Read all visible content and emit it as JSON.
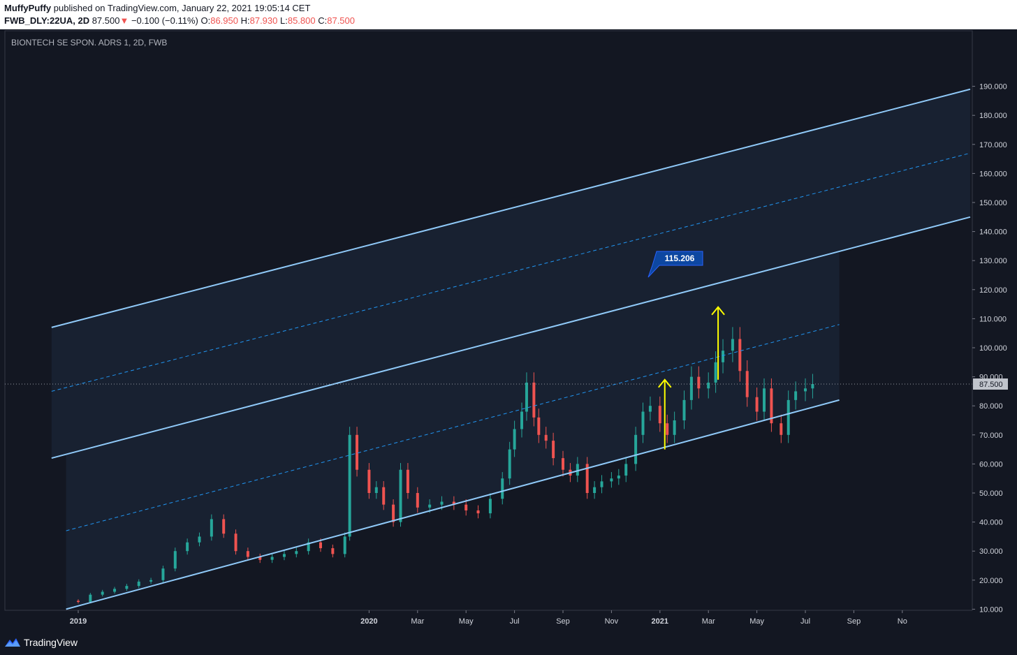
{
  "header": {
    "author": "MuffyPuffy",
    "published_text": "published on TradingView.com, January 22, 2021 19:05:14 CET",
    "symbol": "FWB_DLY:22UA, 2D",
    "last": "87.500",
    "change_arrow": "▼",
    "change": "−0.100 (−0.11%)",
    "o_label": "O:",
    "o_value": "86.950",
    "h_label": "H:",
    "h_value": "87.930",
    "l_label": "L:",
    "l_value": "85.800",
    "c_label": "C:",
    "c_value": "87.500"
  },
  "footer": {
    "brand": "TradingView",
    "logo_icon": "tradingview-logo-icon"
  },
  "colors": {
    "background": "#131722",
    "up": "#26a69a",
    "down": "#ef5350",
    "channel": "#90caf9",
    "median": "#2196f3",
    "arrow": "#ffff00",
    "label_bg": "#0d47a1",
    "channel_fill": "#1a2233",
    "grid": "#2a2e39"
  },
  "chart_data": {
    "type": "candlestick",
    "title": "BIONTECH SE SPON. ADRS 1, 2D, FWB",
    "price_axis": {
      "range": [
        0,
        195
      ],
      "ticks": [
        "10.000",
        "20.000",
        "30.000",
        "40.000",
        "50.000",
        "60.000",
        "70.000",
        "80.000",
        "90.000",
        "100.000",
        "110.000",
        "120.000",
        "130.000",
        "140.000",
        "150.000",
        "160.000",
        "170.000",
        "180.000",
        "190.000"
      ],
      "last_price_label": "87.500"
    },
    "time_axis": {
      "ticks": [
        {
          "label": "2019",
          "x_month": 0
        },
        {
          "label": "2020",
          "x_month": 12
        },
        {
          "label": "Mar",
          "x_month": 14
        },
        {
          "label": "May",
          "x_month": 16
        },
        {
          "label": "Jul",
          "x_month": 18
        },
        {
          "label": "Sep",
          "x_month": 20
        },
        {
          "label": "Nov",
          "x_month": 22
        },
        {
          "label": "2021",
          "x_month": 24
        },
        {
          "label": "Mar",
          "x_month": 26
        },
        {
          "label": "May",
          "x_month": 28
        },
        {
          "label": "Jul",
          "x_month": 30
        },
        {
          "label": "Sep",
          "x_month": 32
        },
        {
          "label": "No",
          "x_month": 34
        }
      ]
    },
    "series_ohlc_close_approx": [
      [
        0,
        12.5
      ],
      [
        0.5,
        15
      ],
      [
        1,
        16
      ],
      [
        1.5,
        17
      ],
      [
        2,
        18
      ],
      [
        2.5,
        19.5
      ],
      [
        3,
        20
      ],
      [
        3.5,
        24
      ],
      [
        4,
        30
      ],
      [
        4.5,
        33
      ],
      [
        5,
        35
      ],
      [
        5.5,
        41
      ],
      [
        6,
        36
      ],
      [
        6.5,
        30
      ],
      [
        7,
        28
      ],
      [
        7.5,
        27
      ],
      [
        8,
        28
      ],
      [
        8.5,
        29
      ],
      [
        9,
        30
      ],
      [
        9.5,
        33
      ],
      [
        10,
        31
      ],
      [
        10.5,
        29
      ],
      [
        11,
        35
      ],
      [
        11.2,
        70
      ],
      [
        11.5,
        58
      ],
      [
        12,
        50
      ],
      [
        12.3,
        52
      ],
      [
        12.6,
        46
      ],
      [
        13,
        40
      ],
      [
        13.3,
        58
      ],
      [
        13.6,
        50
      ],
      [
        14,
        45
      ],
      [
        14.5,
        46
      ],
      [
        15,
        47
      ],
      [
        15.5,
        46
      ],
      [
        16,
        44
      ],
      [
        16.5,
        43
      ],
      [
        17,
        48
      ],
      [
        17.5,
        55
      ],
      [
        17.8,
        65
      ],
      [
        18,
        72
      ],
      [
        18.3,
        78
      ],
      [
        18.5,
        88
      ],
      [
        18.8,
        76
      ],
      [
        19,
        70
      ],
      [
        19.3,
        68
      ],
      [
        19.6,
        62
      ],
      [
        20,
        58
      ],
      [
        20.3,
        56
      ],
      [
        20.6,
        60
      ],
      [
        21,
        50
      ],
      [
        21.3,
        52
      ],
      [
        21.6,
        54
      ],
      [
        22,
        55
      ],
      [
        22.3,
        56
      ],
      [
        22.6,
        60
      ],
      [
        23,
        70
      ],
      [
        23.3,
        78
      ],
      [
        23.6,
        80
      ],
      [
        24,
        74
      ],
      [
        24.3,
        70
      ],
      [
        24.6,
        75
      ],
      [
        25,
        82
      ],
      [
        25.3,
        90
      ],
      [
        25.6,
        86
      ],
      [
        26,
        88
      ],
      [
        26.3,
        95
      ],
      [
        26.6,
        99
      ],
      [
        27,
        103
      ],
      [
        27.3,
        92
      ],
      [
        27.6,
        83
      ],
      [
        28,
        78
      ],
      [
        28.3,
        86
      ],
      [
        28.6,
        74
      ],
      [
        29,
        70
      ],
      [
        29.3,
        82
      ],
      [
        29.6,
        85
      ],
      [
        30,
        86
      ],
      [
        30.3,
        87.5
      ]
    ],
    "channels": [
      {
        "name": "upper-channel-top",
        "start": [
          -1.1,
          107
        ],
        "end": [
          36.8,
          189
        ]
      },
      {
        "name": "upper-channel-median",
        "start": [
          -1.1,
          85
        ],
        "end": [
          36.8,
          167
        ],
        "dashed": true
      },
      {
        "name": "upper-channel-bottom",
        "start": [
          -1.1,
          62
        ],
        "end": [
          36.8,
          145
        ]
      },
      {
        "name": "lower-channel-median",
        "start": [
          -0.5,
          37
        ],
        "end": [
          31.4,
          108
        ],
        "dashed": true
      },
      {
        "name": "lower-channel-bottom",
        "start": [
          -0.5,
          10
        ],
        "end": [
          31.4,
          82
        ]
      }
    ],
    "annotations": [
      {
        "type": "label",
        "text": "115.206"
      },
      {
        "type": "arrow",
        "x_month": 24.2,
        "from": 65,
        "to": 89
      },
      {
        "type": "arrow",
        "x_month": 26.4,
        "from": 89,
        "to": 114
      }
    ]
  }
}
